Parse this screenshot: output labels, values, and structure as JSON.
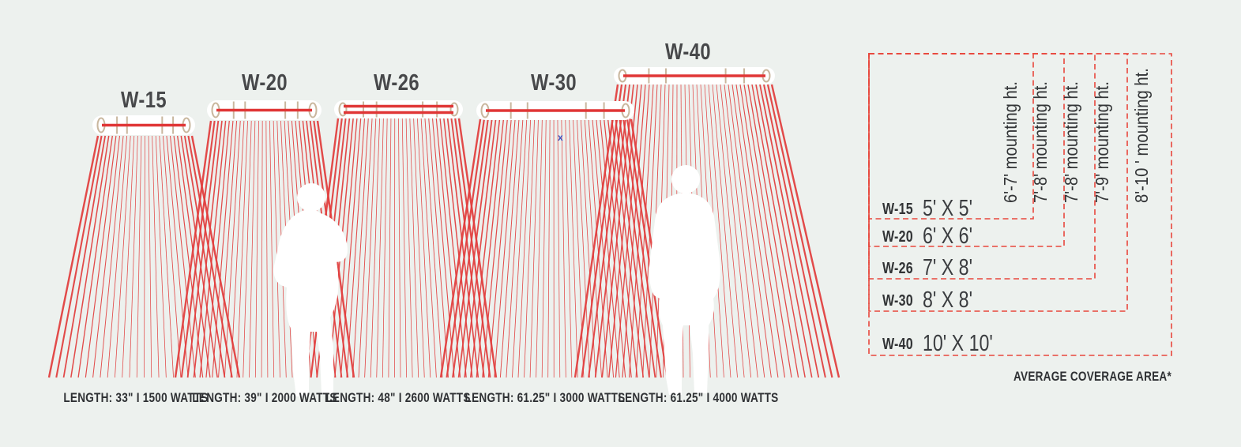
{
  "colors": {
    "background": "#edf1ee",
    "ray_red": "#e23c3c",
    "bar_red": "#e03636",
    "tan": "#c9b79e",
    "table_dash_red": "#e8473c",
    "dark_text": "#47484a",
    "silhouette_white": "#ffffff"
  },
  "heaters": [
    {
      "model": "W-15",
      "length_label": "LENGTH: 33\" I 1500 WATTS"
    },
    {
      "model": "W-20",
      "length_label": "LENGTH: 39\" I 2000 WATTS"
    },
    {
      "model": "W-26",
      "length_label": "LENGTH: 48\" I 2600 WATTS"
    },
    {
      "model": "W-30",
      "length_label": "LENGTH: 61.25\" I 3000 WATTS"
    },
    {
      "model": "W-40",
      "length_label": "LENGTH: 61.25\" I 4000 WATTS"
    }
  ],
  "coverage_table": {
    "rows": [
      {
        "model": "W-15",
        "area": "5' X 5'",
        "mounting": "6'-7' mounting ht."
      },
      {
        "model": "W-20",
        "area": "6' X 6'",
        "mounting": "7'-8' mounting ht."
      },
      {
        "model": "W-26",
        "area": "7' X 8'",
        "mounting": "7'-8' mounting ht."
      },
      {
        "model": "W-30",
        "area": "8' X 8'",
        "mounting": "7'-9' mounting ht."
      },
      {
        "model": "W-40",
        "area": "10' X 10'",
        "mounting": "8'-10 ' mounting ht."
      }
    ],
    "footnote": "AVERAGE COVERAGE AREA*"
  },
  "stray_mark": "x"
}
